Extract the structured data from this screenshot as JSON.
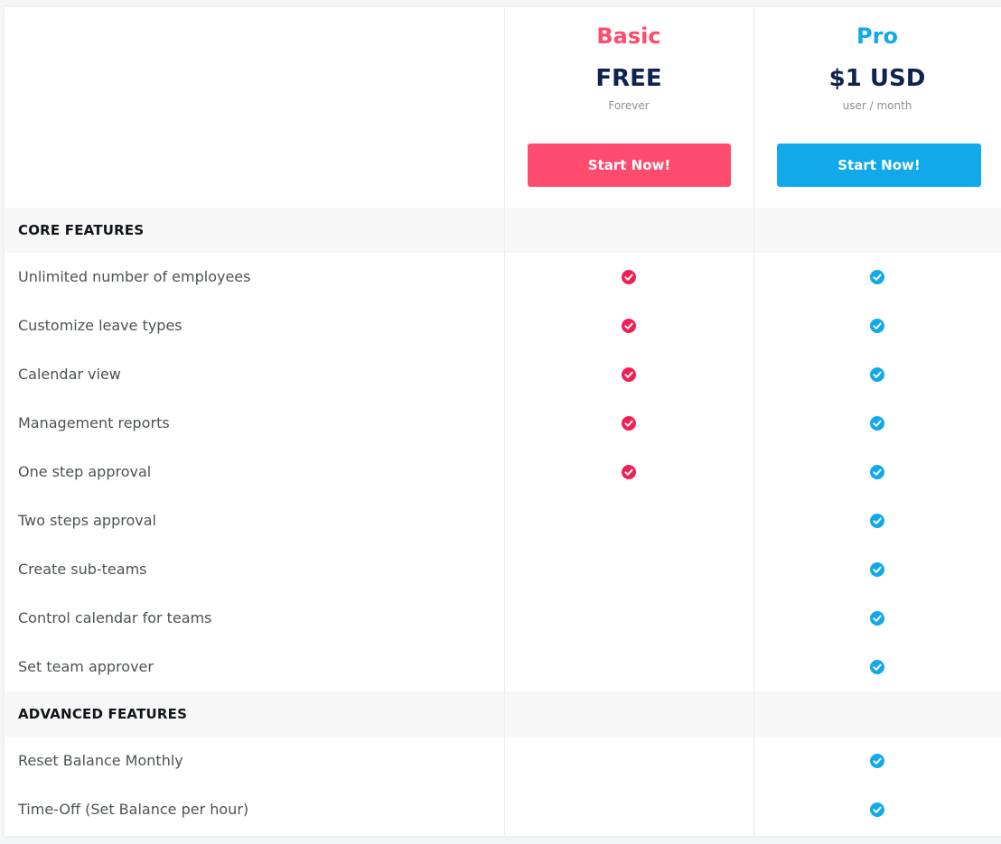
{
  "colors": {
    "basic_accent": "#ff4b6e",
    "basic_check": "#f21f55",
    "pro_accent": "#12a9eb"
  },
  "plans": [
    {
      "name": "Basic",
      "price": "FREE",
      "period": "Forever",
      "cta": "Start Now!"
    },
    {
      "name": "Pro",
      "price": "$1 USD",
      "period": "user / month",
      "cta": "Start Now!"
    }
  ],
  "sections": [
    {
      "title": "CORE FEATURES",
      "features": [
        {
          "label": "Unlimited number of employees",
          "basic": true,
          "pro": true
        },
        {
          "label": "Customize leave types",
          "basic": true,
          "pro": true
        },
        {
          "label": "Calendar view",
          "basic": true,
          "pro": true
        },
        {
          "label": "Management reports",
          "basic": true,
          "pro": true
        },
        {
          "label": "One step approval",
          "basic": true,
          "pro": true
        },
        {
          "label": "Two steps approval",
          "basic": false,
          "pro": true
        },
        {
          "label": "Create sub-teams",
          "basic": false,
          "pro": true
        },
        {
          "label": "Control calendar for teams",
          "basic": false,
          "pro": true
        },
        {
          "label": "Set team approver",
          "basic": false,
          "pro": true
        }
      ]
    },
    {
      "title": "ADVANCED FEATURES",
      "features": [
        {
          "label": "Reset Balance Monthly",
          "basic": false,
          "pro": true
        },
        {
          "label": "Time-Off (Set Balance per hour)",
          "basic": false,
          "pro": true
        }
      ]
    }
  ],
  "icons": {
    "included": "check-circle-icon"
  }
}
